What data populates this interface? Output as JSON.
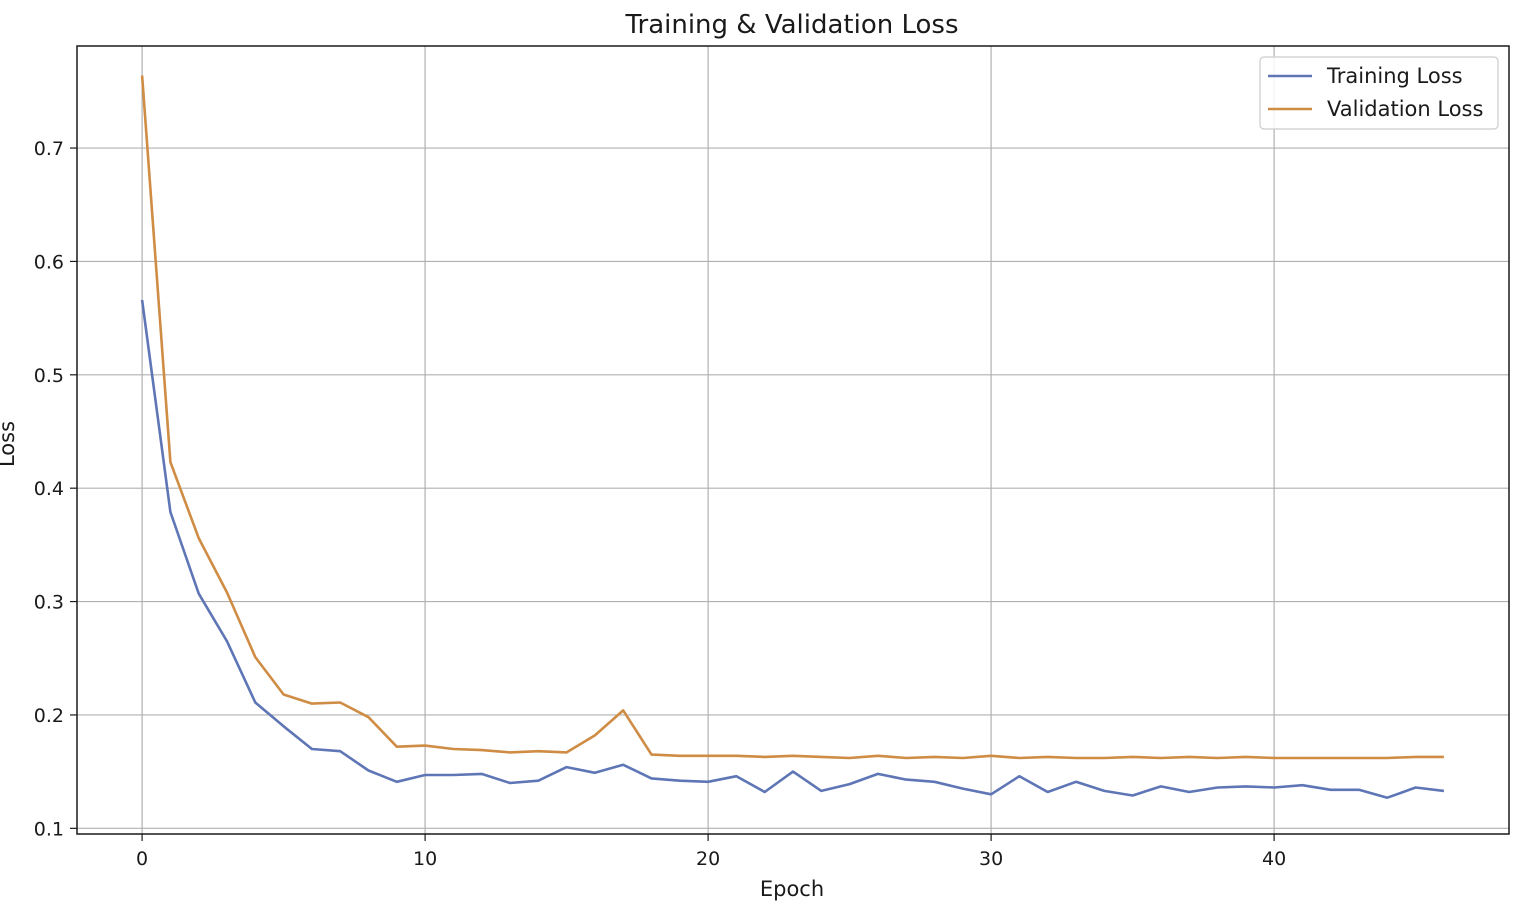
{
  "chart_data": {
    "type": "line",
    "title": "Training & Validation Loss",
    "xlabel": "Epoch",
    "ylabel": "Loss",
    "xlim": [
      -2.3,
      48.3
    ],
    "ylim": [
      0.095,
      0.79
    ],
    "xticks": [
      0,
      10,
      20,
      30,
      40
    ],
    "yticks": [
      0.1,
      0.2,
      0.3,
      0.4,
      0.5,
      0.6,
      0.7
    ],
    "grid": true,
    "legend_position": "top-right",
    "x": [
      0,
      1,
      2,
      3,
      4,
      5,
      6,
      7,
      8,
      9,
      10,
      11,
      12,
      13,
      14,
      15,
      16,
      17,
      18,
      19,
      20,
      21,
      22,
      23,
      24,
      25,
      26,
      27,
      28,
      29,
      30,
      31,
      32,
      33,
      34,
      35,
      36,
      37,
      38,
      39,
      40,
      41,
      42,
      43,
      44,
      45,
      46
    ],
    "series": [
      {
        "name": "Training Loss",
        "color": "#5f76b6",
        "values": [
          0.566,
          0.379,
          0.307,
          0.265,
          0.211,
          0.19,
          0.17,
          0.168,
          0.151,
          0.141,
          0.147,
          0.147,
          0.148,
          0.14,
          0.142,
          0.154,
          0.149,
          0.156,
          0.144,
          0.142,
          0.141,
          0.146,
          0.132,
          0.15,
          0.133,
          0.139,
          0.148,
          0.143,
          0.141,
          0.135,
          0.13,
          0.146,
          0.132,
          0.141,
          0.133,
          0.129,
          0.137,
          0.132,
          0.136,
          0.137,
          0.136,
          0.138,
          0.134,
          0.134,
          0.127,
          0.136,
          0.133
        ]
      },
      {
        "name": "Validation Loss",
        "color": "#cf8c44",
        "values": [
          0.764,
          0.423,
          0.356,
          0.308,
          0.251,
          0.218,
          0.21,
          0.211,
          0.198,
          0.172,
          0.173,
          0.17,
          0.169,
          0.167,
          0.168,
          0.167,
          0.182,
          0.204,
          0.165,
          0.164,
          0.164,
          0.164,
          0.163,
          0.164,
          0.163,
          0.162,
          0.164,
          0.162,
          0.163,
          0.162,
          0.164,
          0.162,
          0.163,
          0.162,
          0.162,
          0.163,
          0.162,
          0.163,
          0.162,
          0.163,
          0.162,
          0.162,
          0.162,
          0.162,
          0.162,
          0.163,
          0.163
        ]
      }
    ]
  }
}
